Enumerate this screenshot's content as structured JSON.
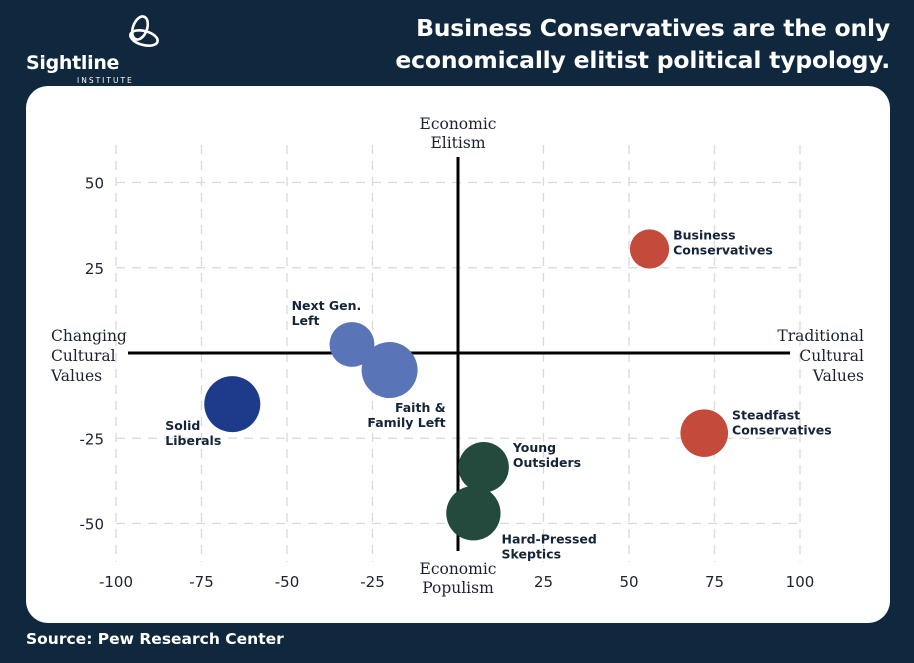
{
  "brand": {
    "name": "Sightline",
    "subtitle": "INSTITUTE"
  },
  "headline": {
    "line1": "Business Conservatives are the only",
    "line2": "economically elitist political typology."
  },
  "source": "Source: Pew Research Center",
  "colors": {
    "background": "#10283d",
    "card": "#ffffff",
    "grid": "#d9d9d9",
    "axis": "#000000",
    "liberal_dark": "#1e3a8a",
    "liberal_light": "#5a74b8",
    "populist_green": "#234a3c",
    "conservative_red": "#c44b3c"
  },
  "chart_data": {
    "type": "scatter",
    "title": "Business Conservatives are the only economically elitist political typology.",
    "xlabel_left": [
      "Changing",
      "Cultural",
      "Values"
    ],
    "xlabel_right": [
      "Traditional",
      "Cultural",
      "Values"
    ],
    "ylabel_top": [
      "Economic",
      "Elitism"
    ],
    "ylabel_bottom": [
      "Economic",
      "Populism"
    ],
    "xlim": [
      -100,
      100
    ],
    "ylim": [
      -60,
      60
    ],
    "x_ticks": [
      -100,
      -75,
      -50,
      -25,
      0,
      25,
      50,
      75,
      100
    ],
    "x_tick_labels": [
      "-100",
      "-75",
      "-50",
      "-25",
      "",
      "25",
      "50",
      "75",
      "100"
    ],
    "y_ticks": [
      50,
      25,
      0,
      -25,
      -50
    ],
    "y_tick_labels": [
      "50",
      "25",
      "",
      "-25",
      "-50"
    ],
    "grid": true,
    "grid_style": "dashed",
    "points": [
      {
        "name": "Business Conservatives",
        "label_lines": [
          "Business",
          "Conservatives"
        ],
        "x": 56,
        "y": 30.5,
        "size": 0.7,
        "color": "#c44b3c",
        "label_pos": "right-up"
      },
      {
        "name": "Steadfast Conservatives",
        "label_lines": [
          "Steadfast",
          "Conservatives"
        ],
        "x": 72,
        "y": -23.5,
        "size": 0.85,
        "color": "#c44b3c",
        "label_pos": "right-up"
      },
      {
        "name": "Solid Liberals",
        "label_lines": [
          "Solid",
          "Liberals"
        ],
        "x": -66,
        "y": -15,
        "size": 1.0,
        "color": "#1e3a8a",
        "label_pos": "left-down"
      },
      {
        "name": "Next Gen. Left",
        "label_lines": [
          "Next Gen.",
          "Left"
        ],
        "x": -31,
        "y": 2.5,
        "size": 0.8,
        "color": "#5a74b8",
        "label_pos": "left-up"
      },
      {
        "name": "Faith & Family Left",
        "label_lines": [
          "Faith &",
          "Family Left"
        ],
        "x": -20,
        "y": -5,
        "size": 1.0,
        "color": "#5a74b8",
        "label_pos": "below-right"
      },
      {
        "name": "Young Outsiders",
        "label_lines": [
          "Young",
          "Outsiders"
        ],
        "x": 7.5,
        "y": -33.5,
        "size": 0.9,
        "color": "#234a3c",
        "label_pos": "right-up"
      },
      {
        "name": "Hard-Pressed Skeptics",
        "label_lines": [
          "Hard-Pressed",
          "Skeptics"
        ],
        "x": 4.5,
        "y": -47,
        "size": 0.97,
        "color": "#234a3c",
        "label_pos": "right-down"
      }
    ]
  }
}
